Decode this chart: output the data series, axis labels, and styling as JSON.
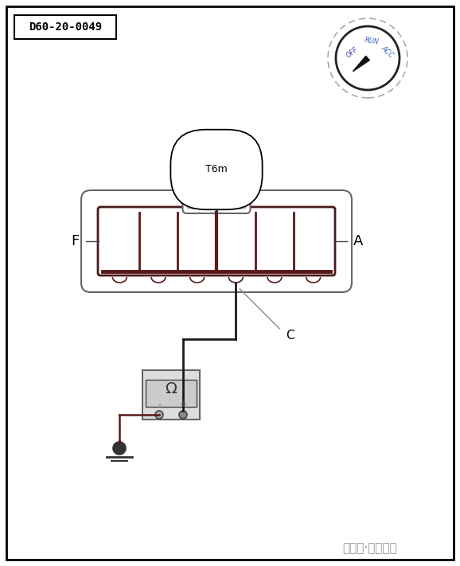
{
  "title_box": "D60-20-0049",
  "label_T6m": "T6m",
  "label_F": "F",
  "label_A": "A",
  "label_C": "C",
  "label_OFF": "OFF",
  "label_RUN": "RUN",
  "label_ACC": "ACC",
  "label_omega": "Ω",
  "label_plus": "+",
  "label_minus": "-",
  "footer": "中华网·汽车频道",
  "bg_color": "#ffffff",
  "border_color": "#000000",
  "connector_outer_color": "#666666",
  "connector_inner_color": "#4a1a1a",
  "dark_red": "#5a1a1a",
  "dial_needle_color": "#111111",
  "wire_dark": "#1a1a1a",
  "wire_brown": "#5a1a1a",
  "meter_border": "#666666",
  "meter_fill": "#dddddd",
  "meter_disp_fill": "#cccccc",
  "ground_color": "#333333"
}
